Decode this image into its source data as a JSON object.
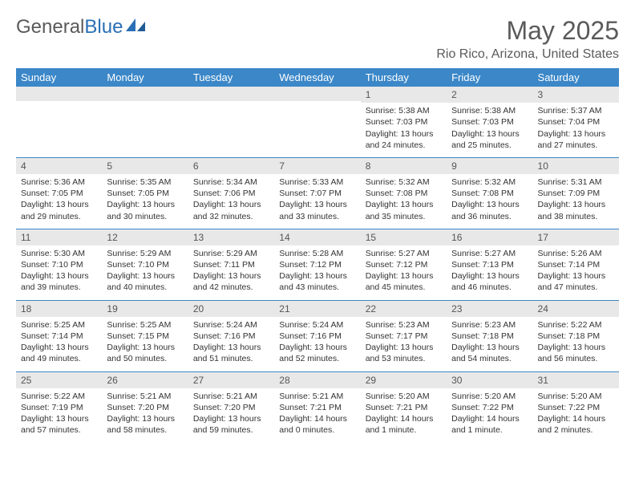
{
  "brand": {
    "part1": "General",
    "part2": "Blue"
  },
  "title": "May 2025",
  "location": "Rio Rico, Arizona, United States",
  "colors": {
    "header_bg": "#3b87c8",
    "header_text": "#ffffff",
    "daynum_bg": "#e8e8e8",
    "border": "#3b87c8",
    "text": "#333333",
    "title_text": "#5a5a5a"
  },
  "fonts": {
    "title_size": 32,
    "location_size": 16,
    "dayheader_size": 13,
    "cell_size": 10.5
  },
  "day_names": [
    "Sunday",
    "Monday",
    "Tuesday",
    "Wednesday",
    "Thursday",
    "Friday",
    "Saturday"
  ],
  "weeks": [
    [
      null,
      null,
      null,
      null,
      {
        "n": "1",
        "sr": "5:38 AM",
        "ss": "7:03 PM",
        "dl": "13 hours and 24 minutes."
      },
      {
        "n": "2",
        "sr": "5:38 AM",
        "ss": "7:03 PM",
        "dl": "13 hours and 25 minutes."
      },
      {
        "n": "3",
        "sr": "5:37 AM",
        "ss": "7:04 PM",
        "dl": "13 hours and 27 minutes."
      }
    ],
    [
      {
        "n": "4",
        "sr": "5:36 AM",
        "ss": "7:05 PM",
        "dl": "13 hours and 29 minutes."
      },
      {
        "n": "5",
        "sr": "5:35 AM",
        "ss": "7:05 PM",
        "dl": "13 hours and 30 minutes."
      },
      {
        "n": "6",
        "sr": "5:34 AM",
        "ss": "7:06 PM",
        "dl": "13 hours and 32 minutes."
      },
      {
        "n": "7",
        "sr": "5:33 AM",
        "ss": "7:07 PM",
        "dl": "13 hours and 33 minutes."
      },
      {
        "n": "8",
        "sr": "5:32 AM",
        "ss": "7:08 PM",
        "dl": "13 hours and 35 minutes."
      },
      {
        "n": "9",
        "sr": "5:32 AM",
        "ss": "7:08 PM",
        "dl": "13 hours and 36 minutes."
      },
      {
        "n": "10",
        "sr": "5:31 AM",
        "ss": "7:09 PM",
        "dl": "13 hours and 38 minutes."
      }
    ],
    [
      {
        "n": "11",
        "sr": "5:30 AM",
        "ss": "7:10 PM",
        "dl": "13 hours and 39 minutes."
      },
      {
        "n": "12",
        "sr": "5:29 AM",
        "ss": "7:10 PM",
        "dl": "13 hours and 40 minutes."
      },
      {
        "n": "13",
        "sr": "5:29 AM",
        "ss": "7:11 PM",
        "dl": "13 hours and 42 minutes."
      },
      {
        "n": "14",
        "sr": "5:28 AM",
        "ss": "7:12 PM",
        "dl": "13 hours and 43 minutes."
      },
      {
        "n": "15",
        "sr": "5:27 AM",
        "ss": "7:12 PM",
        "dl": "13 hours and 45 minutes."
      },
      {
        "n": "16",
        "sr": "5:27 AM",
        "ss": "7:13 PM",
        "dl": "13 hours and 46 minutes."
      },
      {
        "n": "17",
        "sr": "5:26 AM",
        "ss": "7:14 PM",
        "dl": "13 hours and 47 minutes."
      }
    ],
    [
      {
        "n": "18",
        "sr": "5:25 AM",
        "ss": "7:14 PM",
        "dl": "13 hours and 49 minutes."
      },
      {
        "n": "19",
        "sr": "5:25 AM",
        "ss": "7:15 PM",
        "dl": "13 hours and 50 minutes."
      },
      {
        "n": "20",
        "sr": "5:24 AM",
        "ss": "7:16 PM",
        "dl": "13 hours and 51 minutes."
      },
      {
        "n": "21",
        "sr": "5:24 AM",
        "ss": "7:16 PM",
        "dl": "13 hours and 52 minutes."
      },
      {
        "n": "22",
        "sr": "5:23 AM",
        "ss": "7:17 PM",
        "dl": "13 hours and 53 minutes."
      },
      {
        "n": "23",
        "sr": "5:23 AM",
        "ss": "7:18 PM",
        "dl": "13 hours and 54 minutes."
      },
      {
        "n": "24",
        "sr": "5:22 AM",
        "ss": "7:18 PM",
        "dl": "13 hours and 56 minutes."
      }
    ],
    [
      {
        "n": "25",
        "sr": "5:22 AM",
        "ss": "7:19 PM",
        "dl": "13 hours and 57 minutes."
      },
      {
        "n": "26",
        "sr": "5:21 AM",
        "ss": "7:20 PM",
        "dl": "13 hours and 58 minutes."
      },
      {
        "n": "27",
        "sr": "5:21 AM",
        "ss": "7:20 PM",
        "dl": "13 hours and 59 minutes."
      },
      {
        "n": "28",
        "sr": "5:21 AM",
        "ss": "7:21 PM",
        "dl": "14 hours and 0 minutes."
      },
      {
        "n": "29",
        "sr": "5:20 AM",
        "ss": "7:21 PM",
        "dl": "14 hours and 1 minute."
      },
      {
        "n": "30",
        "sr": "5:20 AM",
        "ss": "7:22 PM",
        "dl": "14 hours and 1 minute."
      },
      {
        "n": "31",
        "sr": "5:20 AM",
        "ss": "7:22 PM",
        "dl": "14 hours and 2 minutes."
      }
    ]
  ],
  "labels": {
    "sunrise": "Sunrise:",
    "sunset": "Sunset:",
    "daylight": "Daylight:"
  }
}
